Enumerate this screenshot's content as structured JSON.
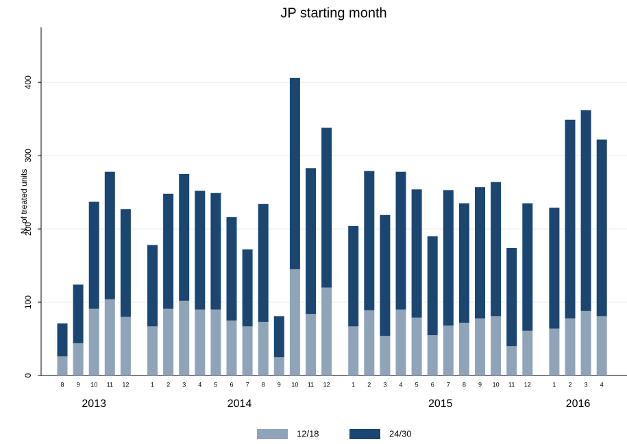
{
  "chart_data": {
    "type": "bar",
    "stacked": true,
    "title": "JP starting month",
    "y_label": "N. of treated units",
    "groups": [
      {
        "label": "2013",
        "categories": [
          "8",
          "9",
          "10",
          "11",
          "12"
        ]
      },
      {
        "label": "2014",
        "categories": [
          "1",
          "2",
          "3",
          "4",
          "5",
          "6",
          "7",
          "8",
          "9",
          "10",
          "11",
          "12"
        ]
      },
      {
        "label": "2015",
        "categories": [
          "1",
          "2",
          "3",
          "4",
          "5",
          "6",
          "7",
          "8",
          "9",
          "10",
          "11",
          "12"
        ]
      },
      {
        "label": "2016",
        "categories": [
          "1",
          "2",
          "3",
          "4"
        ]
      }
    ],
    "series": [
      {
        "name": "12/18",
        "color": "#90a4b9",
        "values": [
          26,
          44,
          91,
          104,
          80,
          67,
          91,
          102,
          90,
          90,
          75,
          67,
          73,
          25,
          145,
          84,
          120,
          67,
          89,
          54,
          90,
          79,
          55,
          68,
          72,
          78,
          81,
          40,
          61,
          64,
          78,
          88,
          81
        ]
      },
      {
        "name": "24/30",
        "color": "#1b4671",
        "values": [
          45,
          80,
          146,
          174,
          147,
          111,
          157,
          173,
          162,
          159,
          141,
          105,
          161,
          56,
          261,
          199,
          218,
          137,
          190,
          165,
          188,
          175,
          135,
          185,
          163,
          179,
          183,
          134,
          174,
          165,
          271,
          274,
          241
        ]
      }
    ],
    "ylim": [
      0,
      475
    ],
    "yticks": [
      0,
      100,
      200,
      300,
      400
    ],
    "grid": true,
    "legend": "bottom"
  }
}
